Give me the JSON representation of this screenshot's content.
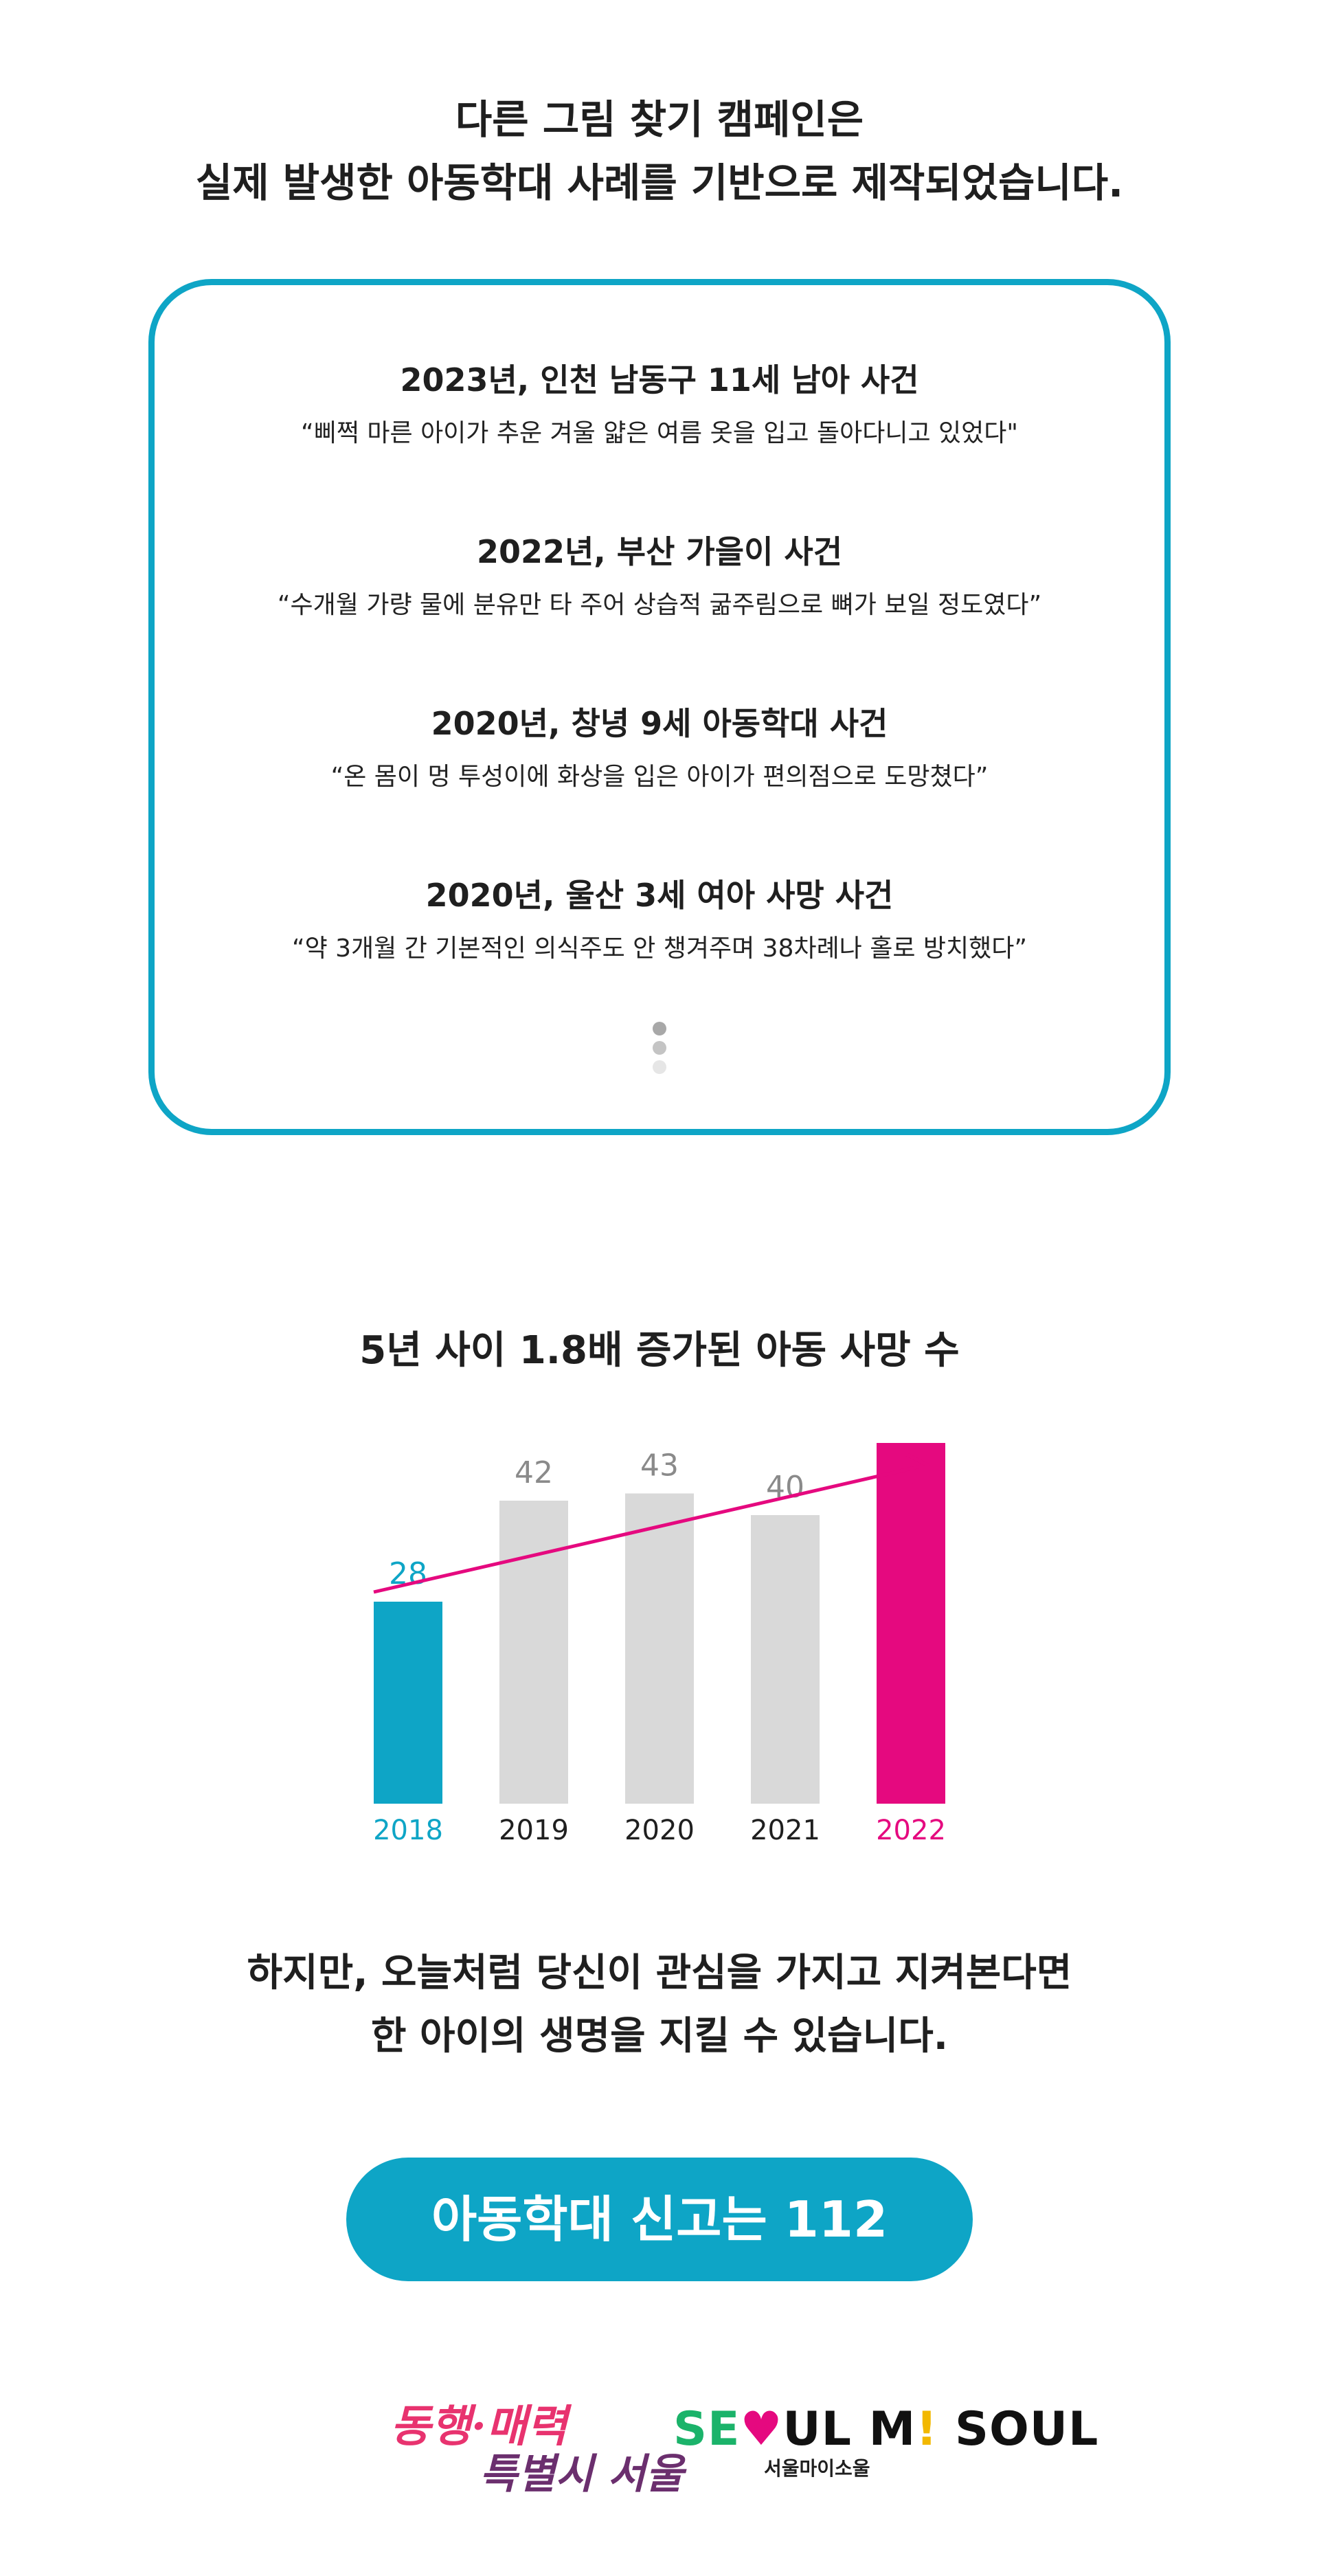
{
  "intro": {
    "line1": "다른 그림 찾기 캠페인은",
    "line2": "실제 발생한 아동학대 사례를 기반으로 제작되었습니다."
  },
  "cases": [
    {
      "title": "2023년, 인천 남동구 11세 남아 사건",
      "quote": "“삐쩍 마른 아이가 추운 겨울 얇은 여름 옷을 입고 돌아다니고 있었다\""
    },
    {
      "title": "2022년, 부산 가을이 사건",
      "quote": "“수개월 가량 물에 분유만 타 주어 상습적 굶주림으로 뼈가 보일 정도였다”"
    },
    {
      "title": "2020년, 창녕 9세 아동학대 사건",
      "quote": "“온 몸이 멍 투성이에 화상을 입은 아이가 편의점으로 도망쳤다”"
    },
    {
      "title": "2020년, 울산 3세 여아 사망 사건",
      "quote": "“약 3개월 간 기본적인 의식주도 안 챙겨주며 38차례나 홀로 방치했다”"
    }
  ],
  "scroll_dots": [
    "#a8a8a8",
    "#c4c4c4",
    "#e6e6e6"
  ],
  "colors": {
    "accent": "#0ea5c6",
    "highlight": "#e5097f",
    "bar_default": "#d9d9d9",
    "label_default": "#8a8a8a"
  },
  "chart_data": {
    "type": "bar",
    "title": "5년 사이 1.8배 증가된 아동 사망 수",
    "categories": [
      "2018",
      "2019",
      "2020",
      "2021",
      "2022"
    ],
    "values": [
      28,
      42,
      43,
      40,
      50
    ],
    "highlight": {
      "2018": "#0ea5c6",
      "2022": "#e5097f"
    },
    "trend_arrow": true,
    "grid": false,
    "xlabel": "",
    "ylabel": ""
  },
  "closing": {
    "line1": "하지만, 오늘처럼 당신이 관심을 가지고 지켜본다면",
    "line2": "한 아이의 생명을 지킬 수 있습니다."
  },
  "report_button": {
    "label": "아동학대 신고는 112"
  },
  "logos": {
    "left_line1": "동행·매력",
    "left_line2": "특별시 서울",
    "right_main_1": "SE",
    "right_main_heart": "♥",
    "right_main_2": "UL M",
    "right_main_excl": "!",
    "right_main_3": " SOUL",
    "right_sub": "서울마이소울"
  }
}
